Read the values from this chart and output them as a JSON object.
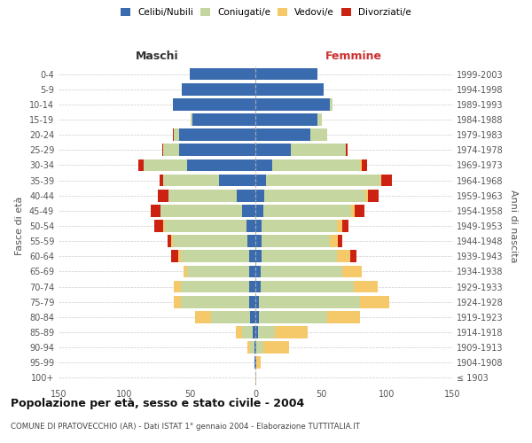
{
  "age_groups": [
    "100+",
    "95-99",
    "90-94",
    "85-89",
    "80-84",
    "75-79",
    "70-74",
    "65-69",
    "60-64",
    "55-59",
    "50-54",
    "45-49",
    "40-44",
    "35-39",
    "30-34",
    "25-29",
    "20-24",
    "15-19",
    "10-14",
    "5-9",
    "0-4"
  ],
  "birth_years": [
    "≤ 1903",
    "1904-1908",
    "1909-1913",
    "1914-1918",
    "1919-1923",
    "1924-1928",
    "1929-1933",
    "1934-1938",
    "1939-1943",
    "1944-1948",
    "1949-1953",
    "1954-1958",
    "1959-1963",
    "1964-1968",
    "1969-1973",
    "1974-1978",
    "1979-1983",
    "1984-1988",
    "1989-1993",
    "1994-1998",
    "1999-2003"
  ],
  "male_celibi": [
    0,
    1,
    1,
    2,
    4,
    5,
    5,
    5,
    5,
    6,
    7,
    10,
    14,
    28,
    52,
    58,
    58,
    48,
    63,
    56,
    50
  ],
  "male_coniugati": [
    0,
    0,
    3,
    8,
    30,
    52,
    52,
    47,
    52,
    57,
    62,
    62,
    52,
    42,
    33,
    12,
    4,
    1,
    0,
    0,
    0
  ],
  "male_vedovi": [
    0,
    0,
    2,
    5,
    12,
    5,
    5,
    3,
    2,
    1,
    1,
    0,
    0,
    0,
    0,
    0,
    0,
    0,
    0,
    0,
    0
  ],
  "male_divorziati": [
    0,
    0,
    0,
    0,
    0,
    0,
    0,
    0,
    5,
    3,
    7,
    8,
    8,
    3,
    4,
    1,
    1,
    0,
    0,
    0,
    0
  ],
  "female_nubili": [
    0,
    1,
    1,
    2,
    3,
    3,
    4,
    4,
    5,
    5,
    5,
    6,
    7,
    8,
    13,
    27,
    42,
    47,
    57,
    52,
    47
  ],
  "female_coniugate": [
    0,
    0,
    5,
    13,
    52,
    77,
    71,
    62,
    57,
    52,
    57,
    67,
    77,
    87,
    67,
    42,
    13,
    4,
    2,
    0,
    0
  ],
  "female_vedove": [
    1,
    3,
    20,
    25,
    25,
    22,
    18,
    15,
    10,
    6,
    4,
    3,
    2,
    1,
    1,
    0,
    0,
    0,
    0,
    0,
    0
  ],
  "female_divorziate": [
    0,
    0,
    0,
    0,
    0,
    0,
    0,
    0,
    5,
    3,
    5,
    7,
    8,
    8,
    4,
    1,
    0,
    0,
    0,
    0,
    0
  ],
  "color_celibi": "#3b6baf",
  "color_coniugati": "#c5d6a0",
  "color_vedovi": "#f5c96a",
  "color_divorziati": "#cc2211",
  "xlim": 150,
  "xticks": [
    -150,
    -100,
    -50,
    0,
    50,
    100,
    150
  ],
  "title": "Popolazione per età, sesso e stato civile - 2004",
  "subtitle": "COMUNE DI PRATOVECCHIO (AR) - Dati ISTAT 1° gennaio 2004 - Elaborazione TUTTITALIA.IT",
  "ylabel_left": "Fasce di età",
  "ylabel_right": "Anni di nascita",
  "label_maschi": "Maschi",
  "label_femmine": "Femmine",
  "legend_labels": [
    "Celibi/Nubili",
    "Coniugati/e",
    "Vedovi/e",
    "Divorziati/e"
  ]
}
